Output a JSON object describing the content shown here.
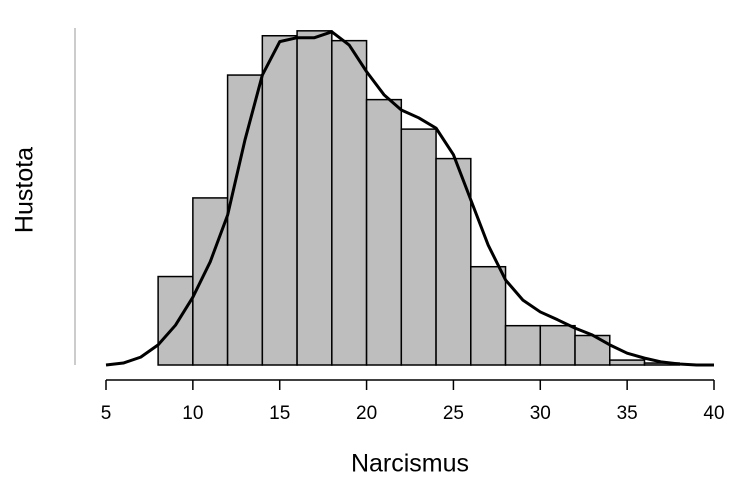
{
  "chart_data": {
    "type": "histogram",
    "xlabel": "Narcismus",
    "ylabel": "Hustota",
    "bins": [
      8,
      10,
      12,
      14,
      16,
      18,
      20,
      22,
      24,
      26,
      28,
      30,
      32,
      34,
      36,
      38
    ],
    "counts": [
      0.018,
      0.034,
      0.059,
      0.067,
      0.068,
      0.066,
      0.054,
      0.048,
      0.042,
      0.02,
      0.008,
      0.008,
      0.006,
      0.001,
      0.0004
    ],
    "color": "#bebebe",
    "density": {
      "x": [
        5,
        6,
        7,
        8,
        9,
        10,
        11,
        12,
        13,
        14,
        15,
        16,
        17,
        18,
        19,
        20,
        21,
        22,
        23,
        24,
        25,
        26,
        27,
        28,
        29,
        30,
        31,
        32,
        33,
        34,
        35,
        36,
        37,
        38,
        39,
        40
      ],
      "y": [
        0,
        0.0004,
        0.0016,
        0.0041,
        0.0081,
        0.0138,
        0.021,
        0.0305,
        0.0458,
        0.059,
        0.0658,
        0.0666,
        0.0666,
        0.0678,
        0.0651,
        0.0597,
        0.055,
        0.0519,
        0.0503,
        0.0482,
        0.0428,
        0.0336,
        0.0244,
        0.0173,
        0.0132,
        0.0108,
        0.0092,
        0.0075,
        0.0061,
        0.0041,
        0.0024,
        0.0014,
        0.0006,
        0.0002,
        0,
        0
      ],
      "color": "#000000"
    },
    "xlim": [
      5,
      40
    ],
    "xticks": [
      5,
      10,
      15,
      20,
      25,
      30,
      35,
      40
    ],
    "ylim": [
      0,
      0.07
    ]
  }
}
